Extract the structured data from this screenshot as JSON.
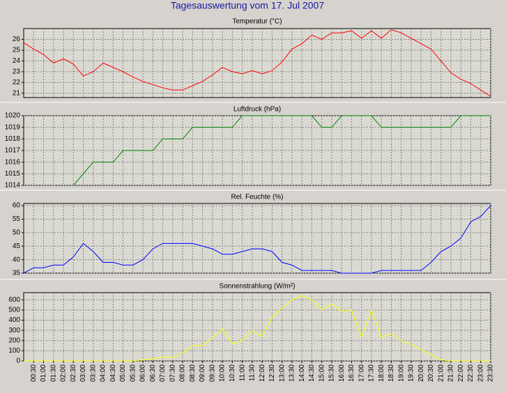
{
  "title": "Tagesauswertung vom 17. Jul 2007",
  "chart_data": [
    {
      "type": "line",
      "title": "Temperatur (°C)",
      "color": "#ff0000",
      "grid": true,
      "ylim": [
        20.6,
        27
      ],
      "yticks": [
        21,
        22,
        23,
        24,
        25,
        26
      ],
      "values": [
        25.7,
        25.1,
        24.6,
        23.8,
        24.2,
        23.7,
        22.6,
        23.0,
        23.8,
        23.4,
        23.0,
        22.5,
        22.1,
        21.8,
        21.5,
        21.3,
        21.3,
        21.7,
        22.1,
        22.7,
        23.4,
        23.0,
        22.8,
        23.1,
        22.8,
        23.1,
        23.9,
        25.1,
        25.6,
        26.4,
        26.0,
        26.6,
        26.6,
        26.8,
        26.1,
        26.8,
        26.1,
        26.9,
        26.6,
        26.1,
        25.6,
        25.1,
        24.0,
        22.9,
        22.3,
        21.9,
        21.3,
        20.7
      ]
    },
    {
      "type": "line",
      "title": "Luftdruck (hPa)",
      "color": "#008000",
      "grid": true,
      "ylim": [
        1014,
        1020
      ],
      "yticks": [
        1014,
        1015,
        1016,
        1017,
        1018,
        1019,
        1020
      ],
      "values": [
        null,
        null,
        null,
        null,
        null,
        1014,
        1015,
        1016,
        1016,
        1016,
        1017,
        1017,
        1017,
        1017,
        1018,
        1018,
        1018,
        1019,
        1019,
        1019,
        1019,
        1019,
        1020,
        1020,
        1020,
        1020,
        1020,
        1020,
        1020,
        1020,
        1019,
        1019,
        1020,
        1020,
        1020,
        1020,
        1019,
        1019,
        1019,
        1019,
        1019,
        1019,
        1019,
        1019,
        1020,
        1020,
        1020,
        1020
      ]
    },
    {
      "type": "line",
      "title": "Rel. Feuchte (%)",
      "color": "#0000ff",
      "grid": true,
      "ylim": [
        35,
        60.8
      ],
      "yticks": [
        35,
        40,
        45,
        50,
        55,
        60
      ],
      "values": [
        35,
        37,
        37,
        38,
        38,
        41,
        46,
        43,
        39,
        39,
        38,
        38,
        40,
        44,
        46,
        46,
        46,
        46,
        45,
        44,
        42,
        42,
        43,
        44,
        44,
        43,
        39,
        38,
        36,
        36,
        36,
        36,
        35,
        35,
        35,
        35,
        36,
        36,
        36,
        36,
        36,
        39,
        43,
        45,
        48,
        54,
        56,
        60
      ]
    },
    {
      "type": "line",
      "title": "Sonnenstrahlung (W/m²)",
      "color": "#ffff00",
      "grid": true,
      "ylim": [
        0,
        670
      ],
      "yticks": [
        0,
        100,
        200,
        300,
        400,
        500,
        600
      ],
      "values": [
        0,
        0,
        0,
        0,
        0,
        0,
        0,
        0,
        0,
        0,
        0,
        0,
        10,
        20,
        40,
        30,
        80,
        150,
        150,
        230,
        310,
        170,
        200,
        300,
        240,
        430,
        520,
        600,
        640,
        600,
        500,
        560,
        490,
        500,
        230,
        500,
        230,
        270,
        200,
        160,
        110,
        60,
        10,
        0,
        0,
        0,
        0,
        0
      ],
      "categories": [
        null,
        "00:30",
        "01:00",
        "01:30",
        "02:00",
        "02:30",
        "03:00",
        "03:30",
        "04:00",
        "04:30",
        "05:00",
        "05:30",
        "06:00",
        "06:30",
        "07:00",
        "07:30",
        "08:00",
        "08:30",
        "09:00",
        "09:30",
        "10:00",
        "10:30",
        "11:00",
        "11:30",
        "12:00",
        "12:30",
        "13:00",
        "13:30",
        "14:00",
        "14:30",
        "15:00",
        "15:30",
        "16:00",
        "16:30",
        "17:00",
        "17:30",
        "18:00",
        "18:30",
        "19:00",
        "19:30",
        "20:00",
        "20:30",
        "21:00",
        "21:30",
        "22:00",
        "22:30",
        "23:00",
        "23:30"
      ]
    }
  ]
}
